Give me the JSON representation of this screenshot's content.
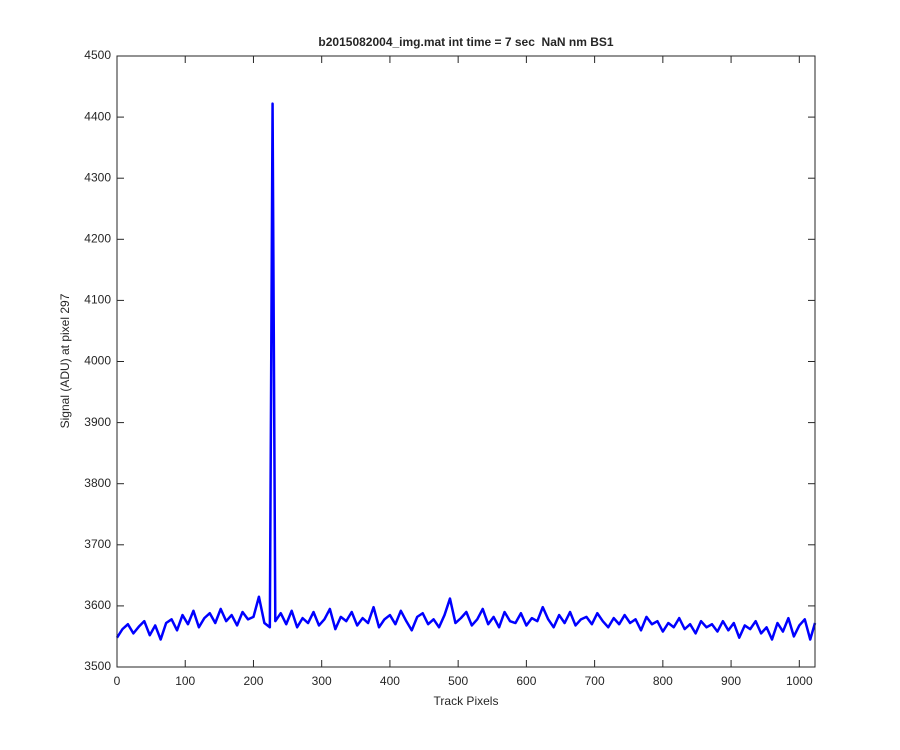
{
  "chart_data": {
    "type": "line",
    "title": "b2015082004_img.mat int time = 7 sec  NaN nm BS1",
    "x_label": "Track Pixels",
    "y_label": "Signal (ADU) at pixel 297",
    "x": [
      0,
      8,
      16,
      24,
      32,
      40,
      48,
      56,
      64,
      72,
      80,
      88,
      96,
      104,
      112,
      120,
      128,
      136,
      144,
      152,
      160,
      168,
      176,
      184,
      192,
      200,
      208,
      216,
      224,
      228,
      232,
      240,
      248,
      256,
      264,
      272,
      280,
      288,
      296,
      304,
      312,
      320,
      328,
      336,
      344,
      352,
      360,
      368,
      376,
      384,
      392,
      400,
      408,
      416,
      424,
      432,
      440,
      448,
      456,
      464,
      472,
      480,
      488,
      496,
      504,
      512,
      520,
      528,
      536,
      544,
      552,
      560,
      568,
      576,
      584,
      592,
      600,
      608,
      616,
      624,
      632,
      640,
      648,
      656,
      664,
      672,
      680,
      688,
      696,
      704,
      712,
      720,
      728,
      736,
      744,
      752,
      760,
      768,
      776,
      784,
      792,
      800,
      808,
      816,
      824,
      832,
      840,
      848,
      856,
      864,
      872,
      880,
      888,
      896,
      904,
      912,
      920,
      928,
      936,
      944,
      952,
      960,
      968,
      976,
      984,
      992,
      1000,
      1008,
      1016,
      1023
    ],
    "series": [
      {
        "color": "#0000ff",
        "values": [
          3548,
          3562,
          3570,
          3555,
          3566,
          3575,
          3552,
          3568,
          3545,
          3572,
          3578,
          3560,
          3585,
          3570,
          3592,
          3565,
          3580,
          3588,
          3572,
          3595,
          3575,
          3585,
          3568,
          3590,
          3578,
          3582,
          3615,
          3572,
          3565,
          4422,
          3575,
          3588,
          3570,
          3592,
          3565,
          3580,
          3572,
          3590,
          3568,
          3578,
          3595,
          3562,
          3582,
          3575,
          3590,
          3568,
          3580,
          3572,
          3598,
          3565,
          3578,
          3585,
          3570,
          3592,
          3575,
          3560,
          3582,
          3588,
          3570,
          3578,
          3565,
          3585,
          3612,
          3572,
          3580,
          3590,
          3568,
          3578,
          3595,
          3570,
          3582,
          3565,
          3590,
          3575,
          3572,
          3588,
          3568,
          3580,
          3575,
          3598,
          3578,
          3565,
          3585,
          3572,
          3590,
          3568,
          3578,
          3582,
          3570,
          3588,
          3575,
          3565,
          3580,
          3570,
          3585,
          3572,
          3578,
          3560,
          3582,
          3570,
          3575,
          3558,
          3572,
          3565,
          3580,
          3562,
          3570,
          3555,
          3575,
          3565,
          3570,
          3558,
          3575,
          3560,
          3572,
          3548,
          3568,
          3562,
          3575,
          3555,
          3565,
          3545,
          3572,
          3558,
          3580,
          3550,
          3568,
          3578,
          3545,
          3572
        ]
      }
    ],
    "xlim": [
      0,
      1023
    ],
    "ylim": [
      3500,
      4500
    ],
    "xticks": [
      0,
      100,
      200,
      300,
      400,
      500,
      600,
      700,
      800,
      900,
      1000
    ],
    "yticks": [
      3500,
      3600,
      3700,
      3800,
      3900,
      4000,
      4100,
      4200,
      4300,
      4400,
      4500
    ]
  }
}
